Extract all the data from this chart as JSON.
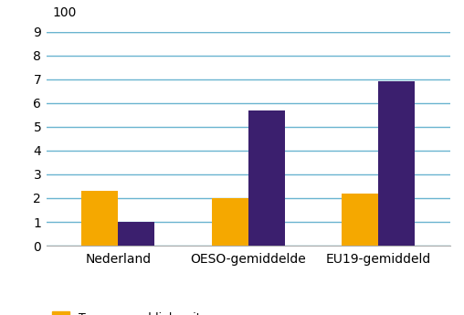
{
  "categories": [
    "Nederland",
    "OESO-gemiddelde",
    "EU19-gemiddeld"
  ],
  "series": {
    "Toename publieke uitgaven": [
      2.3,
      2.0,
      2.2
    ],
    "Toename private uitgaven": [
      1.0,
      5.7,
      6.9
    ]
  },
  "colors": {
    "Toename publieke uitgaven": "#F5A800",
    "Toename private uitgaven": "#3B1F6E"
  },
  "ylim": [
    0,
    9
  ],
  "yticks": [
    0,
    1,
    2,
    3,
    4,
    5,
    6,
    7,
    8,
    9
  ],
  "ytick_labels": [
    "0",
    "1",
    "2",
    "3",
    "4",
    "5",
    "6",
    "7",
    "8",
    "9"
  ],
  "bar_width": 0.28,
  "background_color": "#ffffff",
  "grid_color": "#6ab4d0",
  "legend_fontsize": 9,
  "tick_fontsize": 10,
  "category_fontsize": 10
}
